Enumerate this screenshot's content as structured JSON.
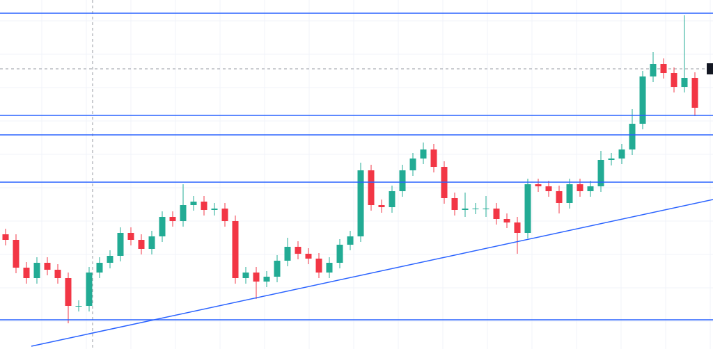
{
  "chart_data": {
    "type": "candlestick",
    "ylim": [
      0,
      502
    ],
    "up_color": "#22ab94",
    "down_color": "#f23645",
    "line_color": "#2962ff",
    "open": [
      165,
      157,
      117,
      102,
      124,
      114,
      102,
      62,
      62,
      110,
      124,
      134,
      167,
      157,
      144,
      162,
      190,
      184,
      207,
      212,
      200,
      202,
      184,
      102,
      110,
      97,
      104,
      127,
      147,
      137,
      130,
      110,
      124,
      150,
      162,
      257,
      207,
      204,
      227,
      257,
      274,
      287,
      262,
      217,
      200,
      202,
      202,
      202,
      187,
      182,
      167,
      237,
      234,
      227,
      210,
      237,
      227,
      234,
      272,
      274,
      287,
      324,
      392,
      410,
      397,
      377,
      390
    ],
    "high": [
      173,
      165,
      125,
      132,
      132,
      122,
      110,
      70,
      118,
      132,
      142,
      175,
      175,
      165,
      170,
      198,
      198,
      237,
      220,
      220,
      210,
      210,
      192,
      118,
      118,
      112,
      135,
      160,
      155,
      145,
      138,
      132,
      158,
      170,
      268,
      265,
      215,
      235,
      265,
      282,
      297,
      295,
      270,
      225,
      225,
      210,
      220,
      210,
      195,
      190,
      245,
      245,
      242,
      235,
      245,
      245,
      242,
      285,
      282,
      295,
      345,
      400,
      427,
      418,
      405,
      480,
      398
    ],
    "low": [
      149,
      109,
      94,
      94,
      106,
      94,
      37,
      54,
      54,
      102,
      116,
      126,
      149,
      136,
      136,
      154,
      176,
      176,
      199,
      192,
      192,
      176,
      94,
      94,
      72,
      89,
      96,
      119,
      129,
      122,
      102,
      102,
      116,
      142,
      154,
      199,
      196,
      196,
      219,
      249,
      266,
      254,
      209,
      192,
      190,
      194,
      190,
      179,
      174,
      137,
      159,
      226,
      219,
      195,
      202,
      219,
      219,
      226,
      264,
      266,
      279,
      316,
      384,
      389,
      369,
      369,
      335
    ],
    "close": [
      157,
      117,
      102,
      124,
      114,
      102,
      62,
      62,
      110,
      124,
      134,
      167,
      157,
      144,
      162,
      190,
      184,
      207,
      212,
      200,
      202,
      184,
      102,
      110,
      97,
      104,
      127,
      147,
      137,
      130,
      110,
      124,
      150,
      162,
      257,
      207,
      204,
      227,
      257,
      274,
      287,
      262,
      217,
      200,
      202,
      202,
      202,
      187,
      182,
      167,
      237,
      234,
      227,
      210,
      237,
      227,
      234,
      272,
      274,
      287,
      324,
      392,
      410,
      397,
      377,
      390,
      347
    ],
    "levels": [
      483,
      336,
      308,
      240,
      42
    ],
    "trendline": [
      4,
      215
    ],
    "crosshair": 403
  }
}
